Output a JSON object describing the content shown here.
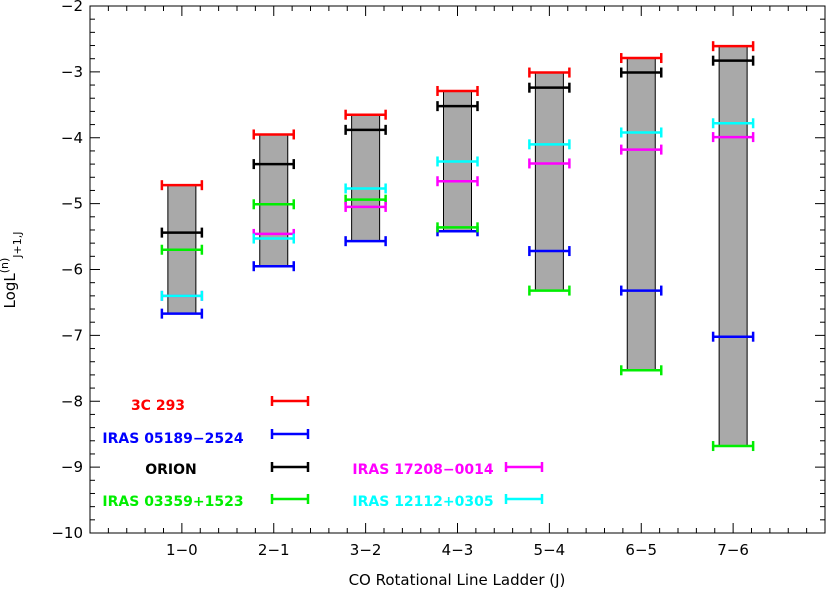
{
  "chart_data": {
    "type": "range-bar",
    "xlabel": "CO Rotational Line Ladder (J)",
    "ylabel_main": "LogL",
    "ylabel_sup": "(n)",
    "ylabel_sub": "J+1,J",
    "ylim": [
      -10,
      -2
    ],
    "xlim": [
      0,
      8
    ],
    "grid": false,
    "categories": [
      "1−0",
      "2−1",
      "3−2",
      "4−3",
      "5−4",
      "6−5",
      "7−6"
    ],
    "yticks": [
      "−10",
      "−9",
      "−8",
      "−7",
      "−6",
      "−5",
      "−4",
      "−3",
      "−2"
    ],
    "range_bars": [
      {
        "category": "1−0",
        "low": -6.67,
        "high": -4.72
      },
      {
        "category": "2−1",
        "low": -5.95,
        "high": -3.95
      },
      {
        "category": "3−2",
        "low": -5.57,
        "high": -3.65
      },
      {
        "category": "4−3",
        "low": -5.42,
        "high": -3.29
      },
      {
        "category": "5−4",
        "low": -6.32,
        "high": -3.01
      },
      {
        "category": "6−5",
        "low": -7.53,
        "high": -2.79
      },
      {
        "category": "7−6",
        "low": -8.68,
        "high": -2.61
      }
    ],
    "series": [
      {
        "name": "3C 293",
        "color": "#ff0000",
        "values": [
          -4.72,
          -3.95,
          -3.65,
          -3.29,
          -3.01,
          -2.79,
          -2.61
        ]
      },
      {
        "name": "IRAS 05189−2524",
        "color": "#0000ff",
        "values": [
          -6.67,
          -5.95,
          -5.57,
          -5.42,
          -5.72,
          -6.32,
          -7.02
        ]
      },
      {
        "name": "ORION",
        "color": "#000000",
        "values": [
          -5.44,
          -4.4,
          -3.88,
          -3.52,
          -3.24,
          -3.01,
          -2.83
        ]
      },
      {
        "name": "IRAS 03359+1523",
        "color": "#00ee00",
        "values": [
          -5.7,
          -5.01,
          -4.94,
          -5.36,
          -6.32,
          -7.53,
          -8.68
        ]
      },
      {
        "name": "IRAS 17208−0014",
        "color": "#ff00ff",
        "values": [
          -6.4,
          -5.46,
          -5.05,
          -4.66,
          -4.39,
          -4.18,
          -3.99
        ]
      },
      {
        "name": "IRAS 12112+0305",
        "color": "#00ffff",
        "values": [
          -6.4,
          -5.53,
          -4.77,
          -4.36,
          -4.1,
          -3.92,
          -3.78
        ]
      }
    ],
    "legend": {
      "placement": "bottom-left",
      "entries": [
        {
          "label": "3C 293",
          "color": "#ff0000"
        },
        {
          "label": "IRAS 05189−2524",
          "color": "#0000ff"
        },
        {
          "label": "ORION",
          "color": "#000000"
        },
        {
          "label": "IRAS 03359+1523",
          "color": "#00ee00"
        },
        {
          "label": "IRAS 17208−0014",
          "color": "#ff00ff"
        },
        {
          "label": "IRAS 12112+0305",
          "color": "#00ffff"
        }
      ]
    }
  }
}
